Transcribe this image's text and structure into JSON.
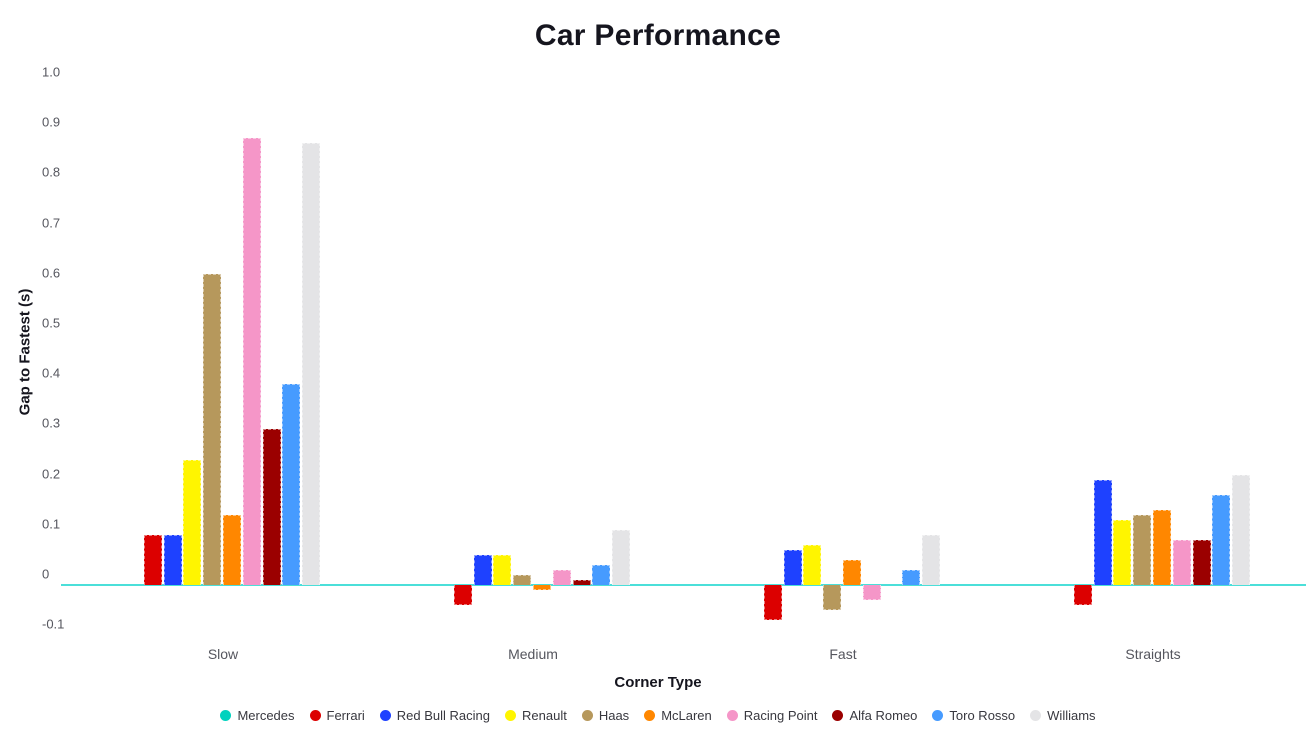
{
  "chart_data": {
    "type": "bar",
    "title": "Car Performance",
    "xlabel": "Corner Type",
    "ylabel": "Gap to Fastest (s)",
    "categories": [
      "Slow",
      "Medium",
      "Fast",
      "Straights"
    ],
    "ytick_labels": [
      "1.0",
      "0.9",
      "0.8",
      "0.7",
      "0.6",
      "0.5",
      "0.4",
      "0.3",
      "0.2",
      "0.1",
      "0",
      "-0.1"
    ],
    "ylim": [
      -0.1,
      1.0
    ],
    "grid": false,
    "legend_position": "bottom",
    "background": "#ffffff",
    "zero_line_color": "#4BDFD9",
    "series": [
      {
        "name": "Mercedes",
        "color": "#00D2BE",
        "values": [
          0,
          0,
          0,
          0
        ]
      },
      {
        "name": "Ferrari",
        "color": "#DC0000",
        "values": [
          0.1,
          -0.04,
          -0.07,
          -0.04
        ]
      },
      {
        "name": "Red Bull Racing",
        "color": "#1E41FF",
        "values": [
          0.1,
          0.06,
          0.07,
          0.21
        ]
      },
      {
        "name": "Renault",
        "color": "#FFF500",
        "values": [
          0.25,
          0.06,
          0.08,
          0.13
        ]
      },
      {
        "name": "Haas",
        "color": "#B6985C",
        "values": [
          0.62,
          0.02,
          -0.05,
          0.14
        ]
      },
      {
        "name": "McLaren",
        "color": "#FF8700",
        "values": [
          0.14,
          -0.01,
          0.05,
          0.15
        ]
      },
      {
        "name": "Racing Point",
        "color": "#F596C8",
        "values": [
          0.89,
          0.03,
          -0.03,
          0.09
        ]
      },
      {
        "name": "Alfa Romeo",
        "color": "#9B0000",
        "values": [
          0.31,
          0.01,
          0,
          0.09
        ]
      },
      {
        "name": "Toro Rosso",
        "color": "#469BFF",
        "values": [
          0.4,
          0.04,
          0.03,
          0.18
        ]
      },
      {
        "name": "Williams",
        "color": "#E4E4E6",
        "values": [
          0.88,
          0.11,
          0.1,
          0.22
        ]
      }
    ]
  }
}
